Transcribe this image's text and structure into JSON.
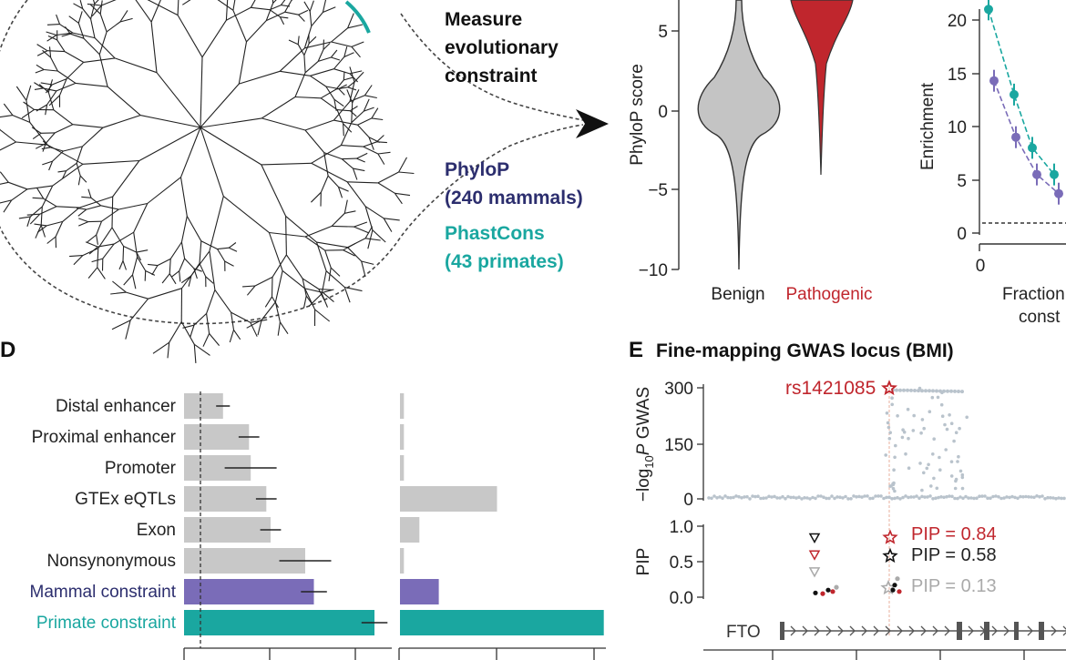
{
  "colors": {
    "teal": "#1aa7a0",
    "purple": "#7a6cb8",
    "navy": "#2c2e6e",
    "red": "#c0262d",
    "gray": "#c8c8c8",
    "darkgray": "#4a4a4a",
    "lightpoint": "#b9c3cc"
  },
  "panel_a": {
    "title_lines": [
      "Measure",
      "evolutionary",
      "constraint"
    ],
    "phylop_lines": [
      "PhyloP",
      "(240 mammals)"
    ],
    "phastcons_lines": [
      "PhastCons",
      "(43 primates)"
    ]
  },
  "panel_b": {
    "ylabel": "PhyloP score",
    "yticks": [
      "5",
      "0",
      "−5",
      "−10"
    ],
    "categories": [
      "Benign",
      "Pathogenic"
    ]
  },
  "panel_c": {
    "ylabel": "Enrichment",
    "yticks": [
      "20",
      "15",
      "10",
      "5",
      "0"
    ],
    "xtick": "0",
    "xlabel_lines": [
      "Fraction",
      "const"
    ]
  },
  "panel_d": {
    "letter": "D",
    "labels": [
      "Distal enhancer",
      "Proximal enhancer",
      "Promoter",
      "GTEx eQTLs",
      "Exon",
      "Nonsynonymous",
      "Mammal constraint",
      "Primate constraint"
    ]
  },
  "panel_e": {
    "letter": "E",
    "title": "Fine-mapping GWAS locus (BMI)",
    "ylabel_top_prefix": "−log",
    "ylabel_top_sub": "10",
    "ylabel_top_p": "P",
    "ylabel_top_suffix": " GWAS",
    "yticks_top": [
      "300",
      "150",
      "0"
    ],
    "ylabel_bottom": "PIP",
    "yticks_bottom": [
      "1.0",
      "0.5",
      "0.0"
    ],
    "snp_label": "rs1421085",
    "pip_entries": [
      "PIP = 0.84",
      "PIP = 0.58",
      "PIP = 0.13"
    ],
    "gene": "FTO"
  },
  "chart_data": [
    {
      "type": "violin",
      "ylabel": "PhyloP score",
      "ylim": [
        -10,
        7
      ],
      "categories": [
        "Benign",
        "Pathogenic"
      ],
      "series": [
        {
          "name": "Benign",
          "mode": 0.2,
          "min": -9.8,
          "max": 7
        },
        {
          "name": "Pathogenic",
          "mode": 6,
          "min": -4,
          "max": 7
        }
      ]
    },
    {
      "type": "line",
      "ylabel": "Enrichment",
      "ylim": [
        0,
        22
      ],
      "series": [
        {
          "color": "teal",
          "x": [
            0.01,
            0.02,
            0.03,
            0.04
          ],
          "y": [
            21,
            13,
            8,
            5.5
          ]
        },
        {
          "color": "purple",
          "x": [
            0.015,
            0.025,
            0.035,
            0.045
          ],
          "y": [
            14.3,
            9,
            5.5,
            3.7
          ]
        }
      ],
      "baseline": 1
    },
    {
      "type": "bar",
      "orientation": "horizontal",
      "categories": [
        "Distal enhancer",
        "Proximal enhancer",
        "Promoter",
        "GTEx eQTLs",
        "Exon",
        "Nonsynonymous",
        "Mammal constraint",
        "Primate constraint"
      ],
      "series": [
        {
          "name": "left",
          "values": [
            0.45,
            0.75,
            0.77,
            0.95,
            1.0,
            1.4,
            1.5,
            2.2
          ],
          "errors": [
            0.08,
            0.12,
            0.3,
            0.12,
            0.12,
            0.3,
            0.15,
            0.15
          ]
        },
        {
          "name": "right",
          "values": [
            0.02,
            0.02,
            0.02,
            0.5,
            0.1,
            0.02,
            0.2,
            1.05
          ]
        }
      ]
    },
    {
      "type": "scatter",
      "title": "Fine-mapping GWAS locus (BMI)",
      "ylabel": "−log10 P GWAS",
      "ylim": [
        0,
        320
      ],
      "highlight": {
        "label": "rs1421085",
        "y": 300
      }
    },
    {
      "type": "scatter",
      "ylabel": "PIP",
      "ylim": [
        0,
        1
      ],
      "points": [
        {
          "label": "PIP = 0.84",
          "y": 0.84,
          "color": "red"
        },
        {
          "label": "PIP = 0.58",
          "y": 0.58,
          "color": "black"
        },
        {
          "label": "PIP = 0.13",
          "y": 0.13,
          "color": "gray"
        }
      ]
    }
  ]
}
